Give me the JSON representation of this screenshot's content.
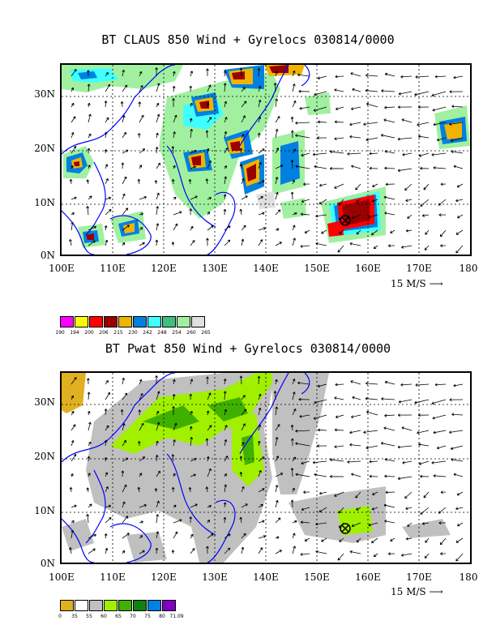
{
  "panel1": {
    "title": "BT CLAUS 850 Wind + Gyrelocs 030814/0000",
    "lat_labels": [
      "30N",
      "20N",
      "10N",
      "0N"
    ],
    "lon_labels": [
      "100E",
      "110E",
      "120E",
      "130E",
      "140E",
      "150E",
      "160E",
      "170E",
      "180"
    ],
    "ref_vector": "15 M/S",
    "colorbar_labels": [
      "190",
      "194",
      "200",
      "206",
      "215",
      "230",
      "242",
      "248",
      "254",
      "260",
      "265"
    ],
    "colorbar_colors": [
      "#ff00ff",
      "#ffff00",
      "#ff0000",
      "#990000",
      "#f0b400",
      "#0080e0",
      "#40ffff",
      "#40c080",
      "#a0f0a0",
      "#e0e0e0"
    ],
    "gyre_marker": "⊗"
  },
  "panel2": {
    "title": "BT Pwat 850 Wind + Gyrelocs 030814/0000",
    "lat_labels": [
      "30N",
      "20N",
      "10N",
      "0N"
    ],
    "lon_labels": [
      "100E",
      "110E",
      "120E",
      "130E",
      "140E",
      "150E",
      "160E",
      "170E",
      "180"
    ],
    "ref_vector": "15 M/S",
    "colorbar_labels": [
      "0",
      "35",
      "55",
      "60",
      "65",
      "70",
      "75",
      "80",
      "71.09"
    ],
    "colorbar_colors": [
      "#e0b020",
      "#ffffff",
      "#c0c0c0",
      "#a0f000",
      "#40b000",
      "#108010",
      "#0080e0",
      "#8000c0"
    ],
    "gyre_marker": "⊗"
  },
  "colors": {
    "coast": "#0000ff",
    "grid": "#000000"
  }
}
